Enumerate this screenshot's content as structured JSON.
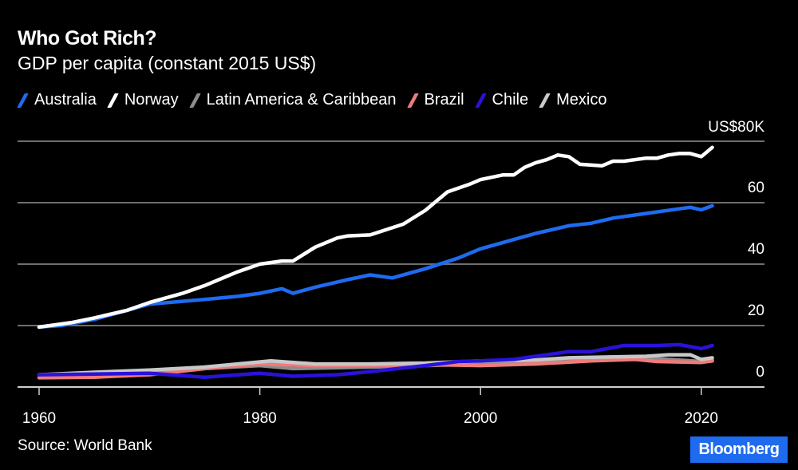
{
  "chart_data": {
    "type": "line",
    "title": "Who Got Rich?",
    "subtitle": "GDP per capita (constant 2015 US$)",
    "source": "Source: World Bank",
    "brand": "Bloomberg",
    "xlim": [
      1960,
      2024
    ],
    "ylim": [
      0,
      80
    ],
    "x_ticks": [
      "1960",
      "1980",
      "2000",
      "2020"
    ],
    "y_ticks": [
      {
        "value": 0,
        "label": "0"
      },
      {
        "value": 20,
        "label": "20"
      },
      {
        "value": 40,
        "label": "40"
      },
      {
        "value": 60,
        "label": "60"
      },
      {
        "value": 80,
        "label": "US$80K"
      }
    ],
    "y_unit": "thousand US$",
    "grid": true,
    "legend_position": "top",
    "series": [
      {
        "name": "Latin America & Caribbean",
        "color": "#8c8c8c",
        "x": [
          1960,
          1965,
          1970,
          1975,
          1980,
          1983,
          1990,
          1995,
          2000,
          2005,
          2010,
          2014,
          2017,
          2020,
          2021
        ],
        "y": [
          4,
          4.5,
          5,
          6,
          7,
          6,
          6.5,
          7,
          7.5,
          8,
          9,
          9.5,
          9,
          8.3,
          8.8
        ]
      },
      {
        "name": "Brazil",
        "color": "#f07a7a",
        "x": [
          1960,
          1965,
          1970,
          1975,
          1980,
          1985,
          1990,
          1995,
          2000,
          2005,
          2010,
          2014,
          2016,
          2020,
          2021
        ],
        "y": [
          3,
          3.2,
          4,
          6,
          7.5,
          7,
          7,
          7.3,
          7,
          7.5,
          8.5,
          9,
          8.3,
          8,
          8.5
        ]
      },
      {
        "name": "Mexico",
        "color": "#c8c8c8",
        "x": [
          1960,
          1965,
          1970,
          1975,
          1981,
          1985,
          1990,
          1995,
          2000,
          2005,
          2008,
          2015,
          2017,
          2019,
          2020,
          2021
        ],
        "y": [
          4,
          4.8,
          5.5,
          6.5,
          8.5,
          7.5,
          7.5,
          7.8,
          8.5,
          8.8,
          9.5,
          10,
          10.5,
          10.5,
          9,
          9.5
        ]
      },
      {
        "name": "Chile",
        "color": "#2a12d8",
        "x": [
          1960,
          1965,
          1970,
          1975,
          1980,
          1983,
          1987,
          1990,
          1995,
          1998,
          2000,
          2003,
          2005,
          2008,
          2010,
          2013,
          2016,
          2018,
          2020,
          2021
        ],
        "y": [
          4,
          4.2,
          4.5,
          3.2,
          4.5,
          3.5,
          4,
          5,
          7,
          8.3,
          8.5,
          9,
          10,
          11.5,
          11.5,
          13.5,
          13.5,
          13.8,
          12.5,
          13.5
        ]
      },
      {
        "name": "Australia",
        "color": "#1f6bf0",
        "x": [
          1960,
          1962,
          1965,
          1968,
          1970,
          1975,
          1978,
          1980,
          1982,
          1983,
          1985,
          1988,
          1990,
          1992,
          1995,
          1998,
          2000,
          2003,
          2005,
          2008,
          2010,
          2012,
          2015,
          2018,
          2019,
          2020,
          2021
        ],
        "y": [
          19.5,
          20,
          22,
          25,
          27,
          28.5,
          29.5,
          30.5,
          32,
          30.5,
          32.5,
          35,
          36.5,
          35.5,
          38.5,
          42,
          45,
          48,
          50,
          52.5,
          53.3,
          55,
          56.5,
          58,
          58.5,
          57.7,
          59
        ]
      },
      {
        "name": "Norway",
        "color": "#ffffff",
        "x": [
          1960,
          1963,
          1965,
          1968,
          1970,
          1973,
          1975,
          1978,
          1980,
          1982,
          1983,
          1985,
          1987,
          1988,
          1990,
          1993,
          1995,
          1997,
          1999,
          2000,
          2002,
          2003,
          2004,
          2005,
          2006,
          2007,
          2008,
          2009,
          2011,
          2012,
          2013,
          2015,
          2016,
          2017,
          2018,
          2019,
          2020,
          2021
        ],
        "y": [
          19.5,
          21,
          22.5,
          25,
          27.5,
          30.5,
          33,
          37.5,
          40,
          41,
          41,
          45.5,
          48.5,
          49.2,
          49.5,
          53,
          57.5,
          63.5,
          66,
          67.5,
          69,
          69,
          71.5,
          73,
          74,
          75.5,
          75,
          72.5,
          72,
          73.5,
          73.5,
          74.5,
          74.5,
          75.5,
          76,
          76,
          75,
          78
        ]
      }
    ]
  }
}
